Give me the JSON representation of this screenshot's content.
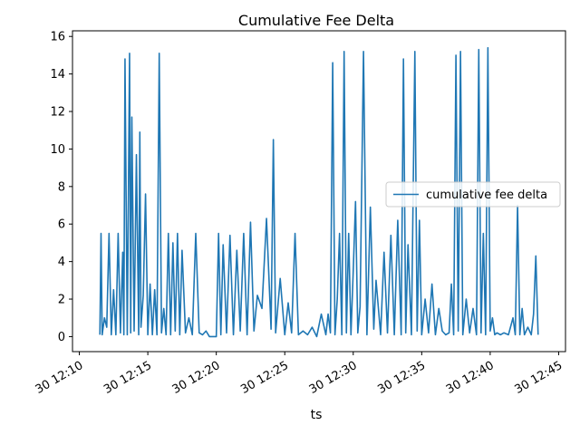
{
  "chart_data": {
    "type": "line",
    "title": "Cumulative Fee Delta",
    "xlabel": "ts",
    "ylabel": "",
    "xlim": [
      "30 12:09:30",
      "30 12:45:30"
    ],
    "ylim": [
      -0.8,
      16.3
    ],
    "x_ticks": [
      "30 12:10",
      "30 12:15",
      "30 12:20",
      "30 12:25",
      "30 12:30",
      "30 12:35",
      "30 12:40",
      "30 12:45"
    ],
    "y_ticks": [
      0,
      2,
      4,
      6,
      8,
      10,
      12,
      14,
      16
    ],
    "legend": {
      "placement": "center-right",
      "entries": [
        "cumulative fee delta"
      ]
    },
    "grid": false,
    "colors": {
      "series": "#1f77b4"
    },
    "series": [
      {
        "name": "cumulative fee delta",
        "x": [
          "30 12:11:30",
          "30 12:11:35",
          "30 12:11:40",
          "30 12:11:50",
          "30 12:12:00",
          "30 12:12:10",
          "30 12:12:20",
          "30 12:12:30",
          "30 12:12:40",
          "30 12:12:50",
          "30 12:13:00",
          "30 12:13:10",
          "30 12:13:15",
          "30 12:13:20",
          "30 12:13:30",
          "30 12:13:40",
          "30 12:13:45",
          "30 12:13:50",
          "30 12:14:00",
          "30 12:14:10",
          "30 12:14:20",
          "30 12:14:25",
          "30 12:14:30",
          "30 12:14:40",
          "30 12:14:50",
          "30 12:15:00",
          "30 12:15:10",
          "30 12:15:20",
          "30 12:15:30",
          "30 12:15:40",
          "30 12:15:50",
          "30 12:16:00",
          "30 12:16:10",
          "30 12:16:20",
          "30 12:16:30",
          "30 12:16:40",
          "30 12:16:50",
          "30 12:17:00",
          "30 12:17:10",
          "30 12:17:20",
          "30 12:17:30",
          "30 12:17:45",
          "30 12:18:00",
          "30 12:18:15",
          "30 12:18:30",
          "30 12:18:45",
          "30 12:19:00",
          "30 12:19:15",
          "30 12:19:30",
          "30 12:20:00",
          "30 12:20:10",
          "30 12:20:20",
          "30 12:20:30",
          "30 12:20:45",
          "30 12:21:00",
          "30 12:21:15",
          "30 12:21:30",
          "30 12:21:45",
          "30 12:22:00",
          "30 12:22:15",
          "30 12:22:30",
          "30 12:22:45",
          "30 12:23:00",
          "30 12:23:20",
          "30 12:23:40",
          "30 12:24:00",
          "30 12:24:10",
          "30 12:24:20",
          "30 12:24:40",
          "30 12:25:00",
          "30 12:25:15",
          "30 12:25:30",
          "30 12:25:45",
          "30 12:26:00",
          "30 12:26:20",
          "30 12:26:40",
          "30 12:27:00",
          "30 12:27:20",
          "30 12:27:40",
          "30 12:28:00",
          "30 12:28:10",
          "30 12:28:20",
          "30 12:28:30",
          "30 12:28:40",
          "30 12:28:50",
          "30 12:29:00",
          "30 12:29:10",
          "30 12:29:20",
          "30 12:29:30",
          "30 12:29:40",
          "30 12:29:50",
          "30 12:30:00",
          "30 12:30:10",
          "30 12:30:20",
          "30 12:30:30",
          "30 12:30:45",
          "30 12:31:00",
          "30 12:31:15",
          "30 12:31:30",
          "30 12:31:40",
          "30 12:32:00",
          "30 12:32:15",
          "30 12:32:30",
          "30 12:32:45",
          "30 12:33:00",
          "30 12:33:15",
          "30 12:33:30",
          "30 12:33:40",
          "30 12:33:50",
          "30 12:34:00",
          "30 12:34:15",
          "30 12:34:30",
          "30 12:34:40",
          "30 12:34:50",
          "30 12:35:00",
          "30 12:35:15",
          "30 12:35:30",
          "30 12:35:45",
          "30 12:36:00",
          "30 12:36:15",
          "30 12:36:30",
          "30 12:36:45",
          "30 12:37:00",
          "30 12:37:10",
          "30 12:37:20",
          "30 12:37:30",
          "30 12:37:40",
          "30 12:37:50",
          "30 12:38:00",
          "30 12:38:15",
          "30 12:38:30",
          "30 12:38:45",
          "30 12:39:00",
          "30 12:39:10",
          "30 12:39:20",
          "30 12:39:30",
          "30 12:39:40",
          "30 12:39:50",
          "30 12:40:00",
          "30 12:40:10",
          "30 12:40:20",
          "30 12:40:30",
          "30 12:40:45",
          "30 12:41:00",
          "30 12:41:20",
          "30 12:41:40",
          "30 12:41:50",
          "30 12:42:00",
          "30 12:42:10",
          "30 12:42:20",
          "30 12:42:30",
          "30 12:42:45",
          "30 12:43:00",
          "30 12:43:10",
          "30 12:43:20",
          "30 12:43:30"
        ],
        "values": [
          0.1,
          5.5,
          0.1,
          1.0,
          0.5,
          5.5,
          0.1,
          2.5,
          0.1,
          5.5,
          0.2,
          4.5,
          0.1,
          14.8,
          0.1,
          15.1,
          0.2,
          11.7,
          0.3,
          9.7,
          0.1,
          10.9,
          0.5,
          2.2,
          7.6,
          0.1,
          2.8,
          0.1,
          2.5,
          0.1,
          15.1,
          0.2,
          1.5,
          0.1,
          5.5,
          0.1,
          5.0,
          0.3,
          5.5,
          0.1,
          4.6,
          0.2,
          1.0,
          0.1,
          5.5,
          0.2,
          0.1,
          0.3,
          0.0,
          0.0,
          5.5,
          0.1,
          4.9,
          0.2,
          5.4,
          0.1,
          4.6,
          0.3,
          5.5,
          0.1,
          6.1,
          0.3,
          2.2,
          1.5,
          6.3,
          0.4,
          10.5,
          0.2,
          3.1,
          0.1,
          1.8,
          0.2,
          5.5,
          0.1,
          0.3,
          0.1,
          0.5,
          0.0,
          1.2,
          0.1,
          1.2,
          0.2,
          14.6,
          0.1,
          2.0,
          5.5,
          0.1,
          15.2,
          0.2,
          5.5,
          0.1,
          3.5,
          7.2,
          0.2,
          1.6,
          15.2,
          0.1,
          6.9,
          0.4,
          3.0,
          0.1,
          4.5,
          0.2,
          5.4,
          0.1,
          6.2,
          0.1,
          14.8,
          0.2,
          4.9,
          0.1,
          15.2,
          0.3,
          6.2,
          0.1,
          2.0,
          0.2,
          2.8,
          0.1,
          1.5,
          0.3,
          0.1,
          0.2,
          2.8,
          0.1,
          15.0,
          0.3,
          15.2,
          0.1,
          2.0,
          0.2,
          1.5,
          0.1,
          15.3,
          0.2,
          5.5,
          0.1,
          15.4,
          0.3,
          1.0,
          0.1,
          0.2,
          0.1,
          0.2,
          0.1,
          1.0,
          0.1,
          7.0,
          0.1,
          1.5,
          0.1,
          0.5,
          0.1,
          1.2,
          4.3,
          0.1
        ]
      }
    ]
  }
}
